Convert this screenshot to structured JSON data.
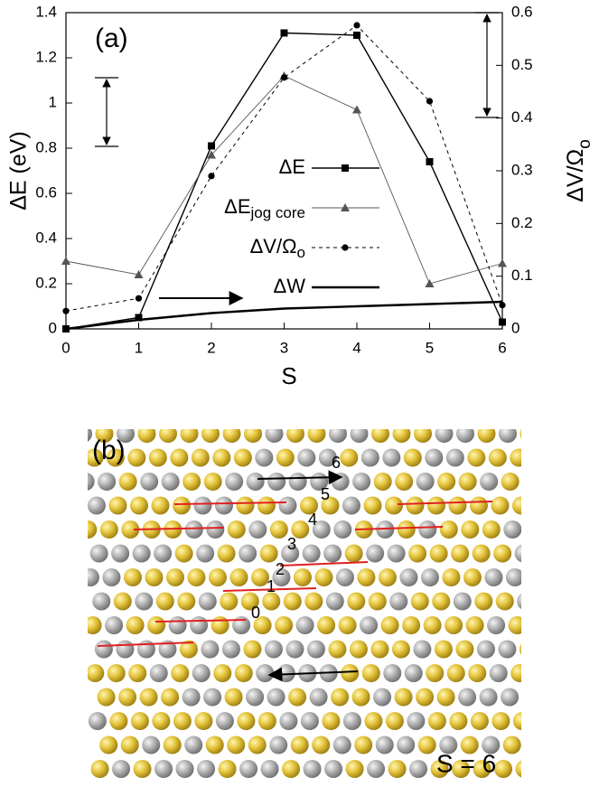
{
  "chart_data": {
    "type": "line",
    "annotation": "(a)",
    "x": [
      0,
      1,
      2,
      3,
      4,
      5,
      6
    ],
    "xlim": [
      0,
      6
    ],
    "xticks": [
      0,
      1,
      2,
      3,
      4,
      5,
      6
    ],
    "xlabel": "S",
    "ylim": [
      0,
      1.4
    ],
    "yticks": [
      0,
      0.2,
      0.4,
      0.6,
      0.8,
      1,
      1.2,
      1.4
    ],
    "ylabel": "ΔE (eV)",
    "y2lim": [
      0,
      0.6
    ],
    "y2ticks": [
      0,
      0.1,
      0.2,
      0.3,
      0.4,
      0.5,
      0.6
    ],
    "y2label": "ΔV/Ω",
    "y2label_sub": "o",
    "series": [
      {
        "name": "ΔE",
        "color": "#000000",
        "marker": "square",
        "dash": false,
        "width": 1.4,
        "values": [
          0,
          0.05,
          0.81,
          1.31,
          1.3,
          0.74,
          0.03
        ]
      },
      {
        "name": "ΔE",
        "name_sub": "jog core",
        "color": "#555555",
        "marker": "triangle",
        "dash": false,
        "width": 0.9,
        "values": [
          0.3,
          0.24,
          0.77,
          1.12,
          0.97,
          0.2,
          0.29
        ]
      },
      {
        "name": "ΔV/Ω",
        "name_sub": "o",
        "color": "#000000",
        "marker": "circle",
        "dash": true,
        "width": 1,
        "axis": "y2",
        "values": [
          0.034,
          0.058,
          0.29,
          0.477,
          0.576,
          0.432,
          0.045
        ]
      },
      {
        "name": "ΔW",
        "color": "#000000",
        "marker": "none",
        "dash": false,
        "width": 2.4,
        "values": [
          0,
          0.04,
          0.07,
          0.09,
          0.1,
          0.11,
          0.12
        ]
      }
    ]
  },
  "panel_b": {
    "label": "(b)",
    "site_labels": [
      "0",
      "1",
      "2",
      "3",
      "4",
      "5",
      "6"
    ],
    "caption": "S = 6"
  }
}
